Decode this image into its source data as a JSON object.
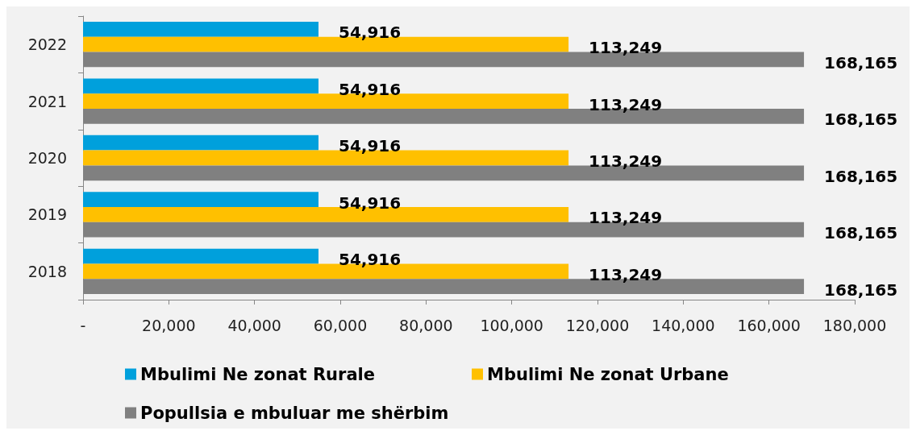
{
  "chart_data": {
    "type": "bar",
    "orientation": "horizontal",
    "categories": [
      "2022",
      "2021",
      "2020",
      "2019",
      "2018"
    ],
    "series": [
      {
        "name": "Mbulimi Ne zonat Rurale",
        "color": "#00a0dc",
        "values": [
          54916,
          54916,
          54916,
          54916,
          54916
        ],
        "value_labels": [
          "54,916",
          "54,916",
          "54,916",
          "54,916",
          "54,916"
        ]
      },
      {
        "name": "Mbulimi Ne zonat Urbane",
        "color": "#ffc000",
        "values": [
          113249,
          113249,
          113249,
          113249,
          113249
        ],
        "value_labels": [
          "113,249",
          "113,249",
          "113,249",
          "113,249",
          "113,249"
        ]
      },
      {
        "name": "Popullsia e mbuluar me shërbim",
        "color": "#808080",
        "values": [
          168165,
          168165,
          168165,
          168165,
          168165
        ],
        "value_labels": [
          "168,165",
          "168,165",
          "168,165",
          "168,165",
          "168,165"
        ]
      }
    ],
    "xlim": [
      0,
      180000
    ],
    "xticks": [
      {
        "value": 0,
        "label": "-"
      },
      {
        "value": 20000,
        "label": "20,000"
      },
      {
        "value": 40000,
        "label": "40,000"
      },
      {
        "value": 60000,
        "label": "60,000"
      },
      {
        "value": 80000,
        "label": "80,000"
      },
      {
        "value": 100000,
        "label": "100,000"
      },
      {
        "value": 120000,
        "label": "120,000"
      },
      {
        "value": 140000,
        "label": "140,000"
      },
      {
        "value": 160000,
        "label": "160,000"
      },
      {
        "value": 180000,
        "label": "180,000"
      }
    ],
    "grid": false,
    "legend": "bottom"
  }
}
